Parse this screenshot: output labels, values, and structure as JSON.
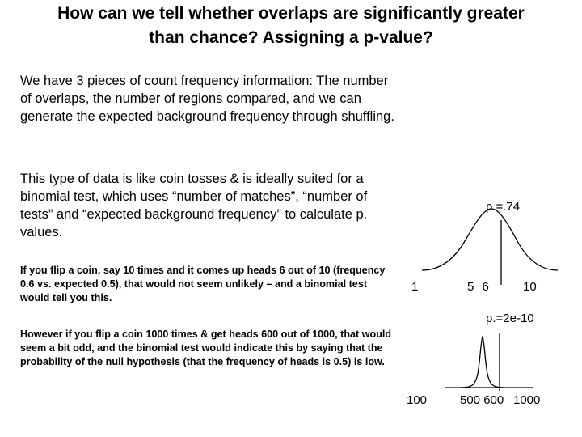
{
  "slide": {
    "title": "How can we tell whether overlaps are significantly greater\nthan chance? Assigning a p-value?",
    "paragraph1": "We have 3 pieces of count frequency information: The number of overlaps, the number of regions compared, and we can generate the expected background frequency through shuffling.",
    "paragraph2": "This type of data is like coin tosses & is ideally suited for a binomial test, which uses “number of matches”, “number of tests” and “expected background frequency” to calculate p. values.",
    "paragraph3": "If you flip a coin, say 10 times and it comes up heads 6 out of 10 (frequency 0.6 vs. expected 0.5), that would not seem unlikely – and a binomial test would tell you this.",
    "paragraph4": "However if you flip a coin 1000 times & get heads 600 out of 1000, that would seem a bit odd, and the binomial test would indicate this by saying that the probability of the null hypothesis (that the frequency of heads is 0.5) is low."
  },
  "figure1": {
    "pvalue_label": "p.=.74",
    "tick_left": "1",
    "tick_mid": "5 6",
    "tick_right": "10",
    "stroke_color": "#000000"
  },
  "figure2": {
    "pvalue_label": "p.=2e-10",
    "tick_left": "100",
    "tick_mid": "500 600",
    "tick_right": "1000",
    "stroke_color": "#000000"
  }
}
